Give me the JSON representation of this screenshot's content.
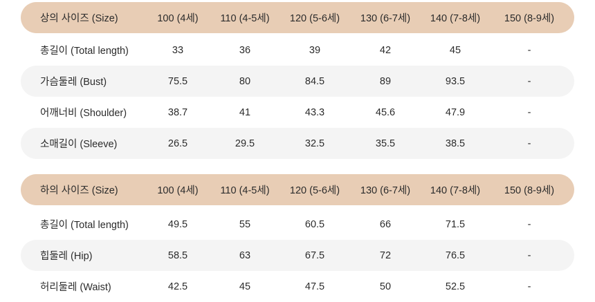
{
  "tables": [
    {
      "header": [
        "상의 사이즈 (Size)",
        "100 (4세)",
        "110 (4-5세)",
        "120 (5-6세)",
        "130 (6-7세)",
        "140 (7-8세)",
        "150 (8-9세)"
      ],
      "rows": [
        [
          "총길이 (Total length)",
          "33",
          "36",
          "39",
          "42",
          "45",
          "-"
        ],
        [
          "가슴둘레 (Bust)",
          "75.5",
          "80",
          "84.5",
          "89",
          "93.5",
          "-"
        ],
        [
          "어깨너비 (Shoulder)",
          "38.7",
          "41",
          "43.3",
          "45.6",
          "47.9",
          "-"
        ],
        [
          "소매길이 (Sleeve)",
          "26.5",
          "29.5",
          "32.5",
          "35.5",
          "38.5",
          "-"
        ]
      ]
    },
    {
      "header": [
        "하의 사이즈 (Size)",
        "100 (4세)",
        "110 (4-5세)",
        "120 (5-6세)",
        "130 (6-7세)",
        "140 (7-8세)",
        "150 (8-9세)"
      ],
      "rows": [
        [
          "총길이 (Total length)",
          "49.5",
          "55",
          "60.5",
          "66",
          "71.5",
          "-"
        ],
        [
          "힙둘레 (Hip)",
          "58.5",
          "63",
          "67.5",
          "72",
          "76.5",
          "-"
        ],
        [
          "허리둘레 (Waist)",
          "42.5",
          "45",
          "47.5",
          "50",
          "52.5",
          "-"
        ]
      ]
    }
  ],
  "colors": {
    "header_bg": "#e8cdb5",
    "stripe_bg": "#f4f4f4",
    "text": "#2b2b2b"
  }
}
